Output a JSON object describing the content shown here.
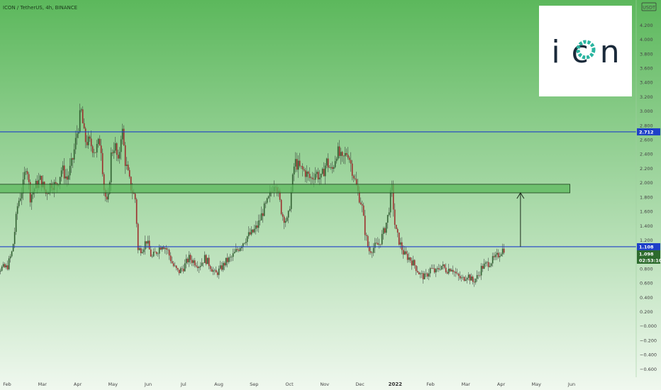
{
  "chart_data": {
    "type": "candlestick",
    "title": "ICON / TetherUS, 4h, BINANCE",
    "currency_badge": "USDT",
    "logo_text": "icon",
    "ylim": [
      -0.6,
      4.4
    ],
    "yticks": [
      "4.200",
      "4.000",
      "3.800",
      "3.600",
      "3.400",
      "3.200",
      "3.000",
      "2.800",
      "2.600",
      "2.400",
      "2.200",
      "2.000",
      "1.800",
      "1.600",
      "1.400",
      "1.200",
      "1.000",
      "0.800",
      "0.600",
      "0.400",
      "0.200",
      "−0.000",
      "−0.200",
      "−0.400",
      "−0.600"
    ],
    "xticks": [
      {
        "label": "Feb",
        "x": 0
      },
      {
        "label": "Mar",
        "x": 1
      },
      {
        "label": "Apr",
        "x": 2
      },
      {
        "label": "May",
        "x": 3
      },
      {
        "label": "Jun",
        "x": 4
      },
      {
        "label": "Jul",
        "x": 5
      },
      {
        "label": "Aug",
        "x": 6
      },
      {
        "label": "Sep",
        "x": 7
      },
      {
        "label": "Oct",
        "x": 8
      },
      {
        "label": "Nov",
        "x": 9
      },
      {
        "label": "Dec",
        "x": 10
      },
      {
        "label": "2022",
        "x": 11,
        "bold": true
      },
      {
        "label": "Feb",
        "x": 12
      },
      {
        "label": "Mar",
        "x": 13
      },
      {
        "label": "Apr",
        "x": 14
      },
      {
        "label": "May",
        "x": 15
      },
      {
        "label": "Jun",
        "x": 16
      }
    ],
    "price_path": [
      [
        -0.55,
        0.88
      ],
      [
        -0.3,
        0.8
      ],
      [
        0.0,
        0.82
      ],
      [
        0.15,
        1.05
      ],
      [
        0.3,
        1.7
      ],
      [
        0.45,
        1.95
      ],
      [
        0.55,
        2.3
      ],
      [
        0.65,
        1.8
      ],
      [
        0.8,
        1.95
      ],
      [
        0.95,
        2.05
      ],
      [
        1.1,
        1.85
      ],
      [
        1.25,
        2.0
      ],
      [
        1.4,
        1.95
      ],
      [
        1.55,
        2.2
      ],
      [
        1.7,
        2.05
      ],
      [
        1.85,
        2.3
      ],
      [
        2.0,
        2.75
      ],
      [
        2.1,
        3.0
      ],
      [
        2.2,
        2.6
      ],
      [
        2.35,
        2.55
      ],
      [
        2.5,
        2.45
      ],
      [
        2.65,
        2.6
      ],
      [
        2.75,
        1.9
      ],
      [
        2.85,
        1.65
      ],
      [
        2.95,
        2.4
      ],
      [
        3.05,
        2.55
      ],
      [
        3.15,
        2.25
      ],
      [
        3.25,
        2.8
      ],
      [
        3.35,
        2.3
      ],
      [
        3.5,
        1.95
      ],
      [
        3.65,
        1.75
      ],
      [
        3.7,
        1.05
      ],
      [
        3.85,
        1.1
      ],
      [
        3.95,
        1.2
      ],
      [
        4.1,
        0.95
      ],
      [
        4.25,
        1.05
      ],
      [
        4.4,
        1.15
      ],
      [
        4.55,
        1.05
      ],
      [
        4.7,
        0.85
      ],
      [
        4.85,
        0.75
      ],
      [
        5.0,
        0.82
      ],
      [
        5.15,
        0.95
      ],
      [
        5.3,
        0.9
      ],
      [
        5.45,
        0.85
      ],
      [
        5.6,
        0.95
      ],
      [
        5.75,
        0.85
      ],
      [
        5.9,
        0.72
      ],
      [
        6.05,
        0.8
      ],
      [
        6.2,
        0.9
      ],
      [
        6.35,
        0.95
      ],
      [
        6.5,
        1.05
      ],
      [
        6.65,
        1.15
      ],
      [
        6.8,
        1.25
      ],
      [
        6.95,
        1.3
      ],
      [
        7.1,
        1.4
      ],
      [
        7.25,
        1.6
      ],
      [
        7.4,
        1.75
      ],
      [
        7.5,
        1.9
      ],
      [
        7.6,
        2.05
      ],
      [
        7.7,
        1.8
      ],
      [
        7.8,
        1.55
      ],
      [
        7.95,
        1.45
      ],
      [
        8.05,
        1.85
      ],
      [
        8.15,
        2.3
      ],
      [
        8.3,
        2.2
      ],
      [
        8.45,
        2.15
      ],
      [
        8.6,
        2.05
      ],
      [
        8.75,
        2.15
      ],
      [
        8.9,
        2.05
      ],
      [
        9.05,
        2.3
      ],
      [
        9.2,
        2.15
      ],
      [
        9.35,
        2.45
      ],
      [
        9.5,
        2.3
      ],
      [
        9.65,
        2.45
      ],
      [
        9.8,
        2.15
      ],
      [
        9.95,
        1.85
      ],
      [
        10.05,
        1.7
      ],
      [
        10.15,
        1.3
      ],
      [
        10.25,
        1.05
      ],
      [
        10.4,
        1.1
      ],
      [
        10.55,
        1.15
      ],
      [
        10.7,
        1.35
      ],
      [
        10.8,
        1.55
      ],
      [
        10.9,
        1.95
      ],
      [
        11.0,
        1.35
      ],
      [
        11.1,
        1.2
      ],
      [
        11.25,
        1.0
      ],
      [
        11.4,
        0.95
      ],
      [
        11.55,
        0.85
      ],
      [
        11.7,
        0.72
      ],
      [
        11.85,
        0.68
      ],
      [
        12.0,
        0.8
      ],
      [
        12.15,
        0.75
      ],
      [
        12.3,
        0.85
      ],
      [
        12.45,
        0.78
      ],
      [
        12.6,
        0.82
      ],
      [
        12.75,
        0.7
      ],
      [
        12.9,
        0.65
      ],
      [
        13.05,
        0.72
      ],
      [
        13.2,
        0.62
      ],
      [
        13.35,
        0.7
      ],
      [
        13.45,
        0.82
      ],
      [
        13.55,
        0.85
      ],
      [
        13.7,
        0.9
      ],
      [
        13.85,
        0.95
      ],
      [
        14.0,
        1.05
      ],
      [
        14.1,
        1.09
      ]
    ],
    "support_line": 1.108,
    "resistance_line": 2.712,
    "zone": [
      1.86,
      1.98
    ],
    "zone_x": [
      -0.45,
      15.95
    ],
    "projection_arrow": {
      "x": 14.55,
      "from": 1.108,
      "to": 1.86
    },
    "price_tags": [
      {
        "label": "2.712",
        "value": 2.712,
        "color": "#1e3fc8"
      },
      {
        "label": "1.108",
        "value": 1.108,
        "color": "#1e3fc8"
      },
      {
        "label": "1.098",
        "value": 1.098,
        "color": "#2d6b2d"
      },
      {
        "label": "02:53:10",
        "value": 0.98,
        "color": "#2d6b2d"
      }
    ],
    "colors": {
      "bg_top": "#5cb85c",
      "bg_bottom": "#f0f8ef",
      "line_blue": "#1e3fc8",
      "zone_fill": "#5cb85c",
      "zone_stroke": "#1a3d1a",
      "up": "#2f5d2f",
      "down": "#9b2a2a",
      "wick": "#333333"
    }
  }
}
